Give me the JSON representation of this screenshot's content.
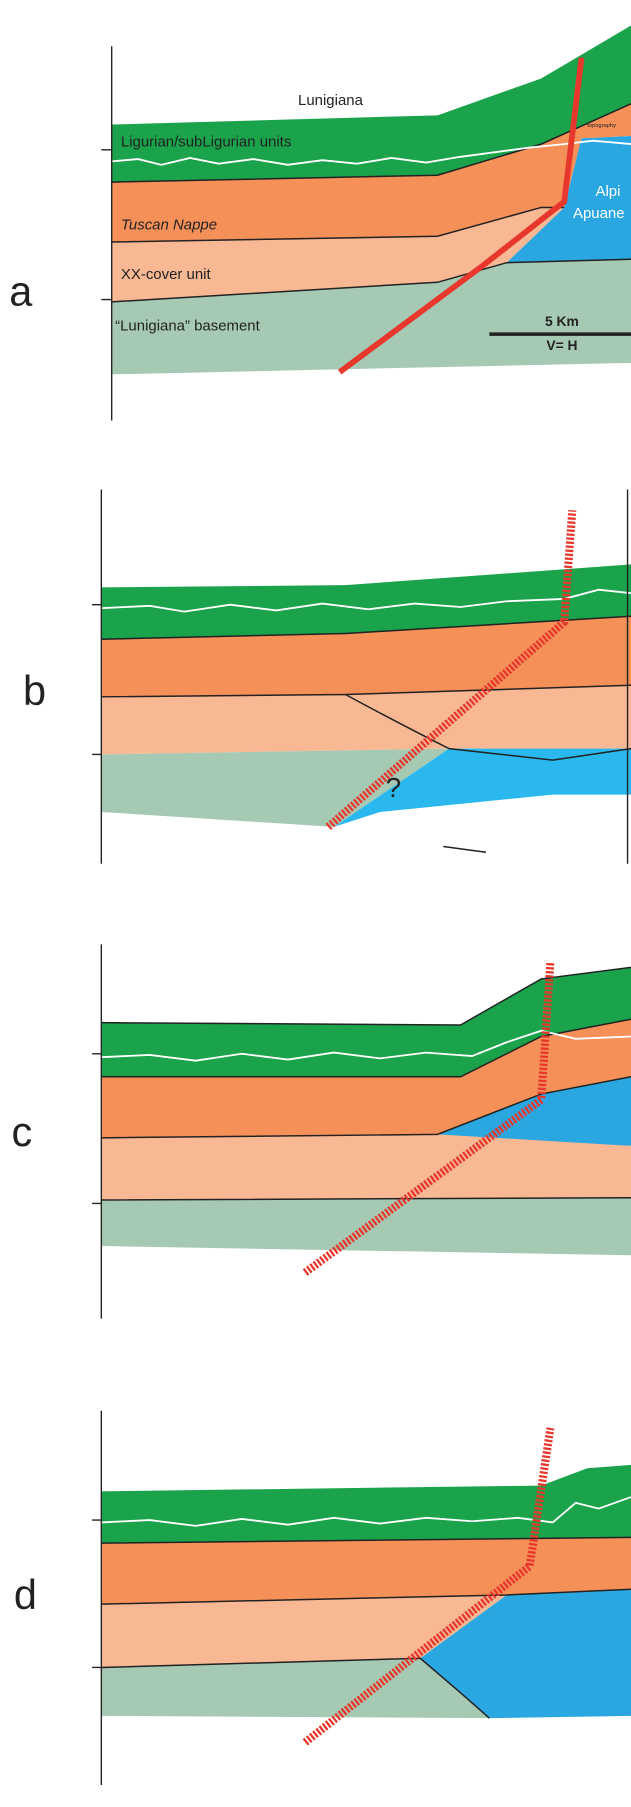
{
  "panels": [
    {
      "letter": "a",
      "labels": {
        "region": "Lunigiana",
        "top_unit": "Ligurian/subLigurian units",
        "topography": "topography",
        "middle_unit": "Tuscan Nappe",
        "cover_unit": "XX-cover unit",
        "basement": "“Lunigiana” basement",
        "massif_line1": "Alpi",
        "massif_line2": "Apuane",
        "scale": "5 Km",
        "ratio": "V= H"
      }
    },
    {
      "letter": "b",
      "annotation": "?"
    },
    {
      "letter": "c"
    },
    {
      "letter": "d"
    }
  ]
}
